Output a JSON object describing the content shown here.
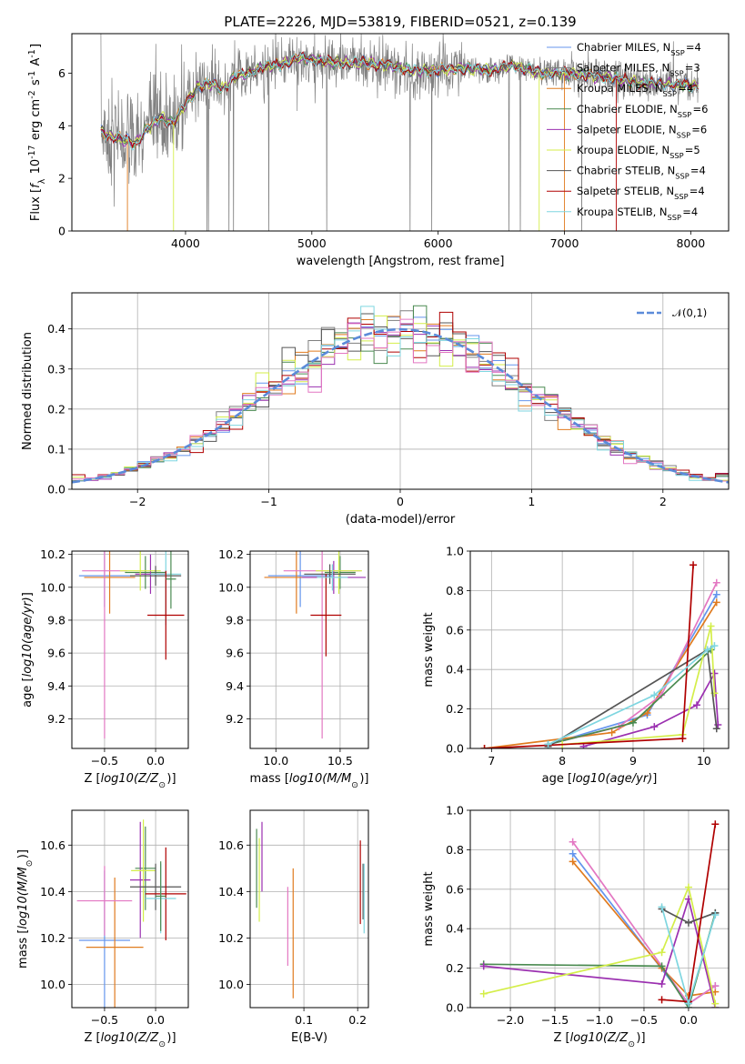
{
  "title": "PLATE=2226, MJD=53819, FIBERID=0521, z=0.139",
  "colors": {
    "Chabrier MILES": "#6495ed",
    "Salpeter MILES": "#7f7f7f",
    "Kroupa MILES": "#e07b1f",
    "Chabrier ELODIE": "#4a8a50",
    "Salpeter ELODIE": "#9b30b0",
    "Kroupa ELODIE": "#d4ee4a",
    "Chabrier STELIB": "#555555",
    "Salpeter STELIB": "#b00000",
    "Kroupa STELIB": "#7fd6e0",
    "Pink": "#e377c2",
    "Normal": "#5b8bd9"
  },
  "chart_data": [
    {
      "id": "spectrum",
      "type": "line",
      "xlabel": "wavelength [Angstrom, rest frame]",
      "ylabel": "Flux [$f_\\lambda 10^{-17}$ erg cm$^{-2}$ s$^{-1}$ A$^{-1}$]",
      "xlim": [
        3100,
        8300
      ],
      "ylim": [
        0,
        7.5
      ],
      "xticks": [
        4000,
        5000,
        6000,
        7000,
        8000
      ],
      "yticks": [
        0,
        2,
        4,
        6
      ],
      "legend": "top-right",
      "series": [
        {
          "name": "Chabrier MILES, N$_{SSP}$=4"
        },
        {
          "name": "Salpeter MILES, N$_{SSP}$=3"
        },
        {
          "name": "Kroupa MILES, N$_{SSP}$=4"
        },
        {
          "name": "Chabrier ELODIE, N$_{SSP}$=6"
        },
        {
          "name": "Salpeter ELODIE, N$_{SSP}$=6"
        },
        {
          "name": "Kroupa ELODIE, N$_{SSP}$=5"
        },
        {
          "name": "Chabrier STELIB, N$_{SSP}$=4"
        },
        {
          "name": "Salpeter STELIB, N$_{SSP}$=4"
        },
        {
          "name": "Kroupa STELIB, N$_{SSP}$=4"
        }
      ],
      "continuum": [
        [
          3330,
          3.8
        ],
        [
          3400,
          3.6
        ],
        [
          3500,
          3.5
        ],
        [
          3600,
          3.3
        ],
        [
          3700,
          3.9
        ],
        [
          3800,
          4.3
        ],
        [
          3900,
          4.1
        ],
        [
          4000,
          4.8
        ],
        [
          4100,
          5.5
        ],
        [
          4200,
          5.6
        ],
        [
          4300,
          5.4
        ],
        [
          4400,
          5.9
        ],
        [
          4500,
          6.0
        ],
        [
          4600,
          6.2
        ],
        [
          4700,
          6.3
        ],
        [
          4800,
          6.4
        ],
        [
          4900,
          6.6
        ],
        [
          5000,
          6.5
        ],
        [
          5200,
          6.4
        ],
        [
          5400,
          6.4
        ],
        [
          5600,
          6.3
        ],
        [
          5800,
          6.1
        ],
        [
          6000,
          6.1
        ],
        [
          6200,
          6.2
        ],
        [
          6400,
          6.1
        ],
        [
          6600,
          6.3
        ],
        [
          6800,
          6.0
        ],
        [
          7000,
          6.0
        ],
        [
          7200,
          5.9
        ],
        [
          7400,
          5.8
        ],
        [
          7600,
          5.6
        ],
        [
          7800,
          5.6
        ],
        [
          8050,
          5.5
        ]
      ]
    },
    {
      "id": "residuals",
      "type": "bar",
      "xlabel": "(data-model)/error",
      "ylabel": "Normed distribution",
      "xlim": [
        -2.5,
        2.5
      ],
      "ylim": [
        0,
        0.49
      ],
      "xticks": [
        -2,
        -1,
        0,
        1,
        2
      ],
      "yticks": [
        0.0,
        0.1,
        0.2,
        0.3,
        0.4
      ],
      "legend": "top-right",
      "legend_label": "$\\mathcal{N}(0,1)$",
      "bin_width": 0.1,
      "bin_start": -2.5,
      "gaussian": {
        "mean": 0,
        "sigma": 1
      }
    },
    {
      "id": "age-vs-Z",
      "type": "scatter",
      "xlabel": "Z [$\\log_{10}(Z/Z_\\odot)$]",
      "ylabel": "age  [$\\log_{10}(age/yr)$]",
      "xlim": [
        -0.82,
        0.32
      ],
      "ylim": [
        9.02,
        10.22
      ],
      "xticks": [
        -0.5,
        0.0
      ],
      "yticks": [
        9.2,
        9.4,
        9.6,
        9.8,
        10.0,
        10.2
      ],
      "points": [
        {
          "s": "Chabrier MILES",
          "x": -0.5,
          "y": 10.07,
          "xerr": 0.25,
          "yerr": 0.19
        },
        {
          "s": "Kroupa MILES",
          "x": -0.45,
          "y": 10.06,
          "xerr": 0.25,
          "yerr": 0.22
        },
        {
          "s": "Pink",
          "x": -0.5,
          "y": 10.1,
          "xerr": 0.22,
          "yerr": 1.02
        },
        {
          "s": "Chabrier ELODIE",
          "x": -0.1,
          "y": 10.09,
          "xerr": 0.2,
          "yerr": 0.1
        },
        {
          "s": "Salpeter ELODIE",
          "x": -0.05,
          "y": 10.08,
          "xerr": 0.15,
          "yerr": 0.12
        },
        {
          "s": "Kroupa ELODIE",
          "x": -0.15,
          "y": 10.1,
          "xerr": 0.2,
          "yerr": 0.12
        },
        {
          "s": "Chabrier STELIB",
          "x": 0.0,
          "y": 10.07,
          "xerr": 0.25,
          "yerr": 0.06
        },
        {
          "s": "Kroupa STELIB",
          "x": 0.1,
          "y": 10.08,
          "xerr": 0.15,
          "yerr": 0.31
        },
        {
          "s": "Salpeter STELIB",
          "x": 0.1,
          "y": 9.83,
          "xerr": 0.18,
          "yerr": 0.27
        },
        {
          "s": "Chabrier ELODIE",
          "x": 0.15,
          "y": 10.05,
          "xerr": 0.05,
          "yerr": 0.18
        }
      ]
    },
    {
      "id": "age-vs-mass",
      "type": "scatter",
      "xlabel": "mass [$\\log_{10}(M/M_\\odot)$]",
      "ylabel": "",
      "xlim": [
        9.8,
        10.72
      ],
      "ylim": [
        9.02,
        10.22
      ],
      "xticks": [
        10.0,
        10.5
      ],
      "yticks": [
        9.2,
        9.4,
        9.6,
        9.8,
        10.0,
        10.2
      ],
      "points": [
        {
          "s": "Chabrier MILES",
          "x": 10.19,
          "y": 10.07,
          "xerr": 0.25,
          "yerr": 0.19
        },
        {
          "s": "Kroupa MILES",
          "x": 10.16,
          "y": 10.06,
          "xerr": 0.25,
          "yerr": 0.22
        },
        {
          "s": "Pink",
          "x": 10.36,
          "y": 10.1,
          "xerr": 0.3,
          "yerr": 1.02
        },
        {
          "s": "Chabrier ELODIE",
          "x": 10.5,
          "y": 10.09,
          "xerr": 0.12,
          "yerr": 0.1
        },
        {
          "s": "Salpeter ELODIE",
          "x": 10.45,
          "y": 10.06,
          "xerr": 0.25,
          "yerr": 0.1
        },
        {
          "s": "Kroupa ELODIE",
          "x": 10.49,
          "y": 10.1,
          "xerr": 0.18,
          "yerr": 0.14
        },
        {
          "s": "Chabrier STELIB",
          "x": 10.42,
          "y": 10.08,
          "xerr": 0.2,
          "yerr": 0.06
        },
        {
          "s": "Salpeter STELIB",
          "x": 10.39,
          "y": 9.83,
          "xerr": 0.12,
          "yerr": 0.25
        },
        {
          "s": "Kroupa STELIB",
          "x": 10.44,
          "y": 10.06,
          "xerr": 0.12,
          "yerr": 0.08
        }
      ]
    },
    {
      "id": "weight-vs-age",
      "type": "line",
      "xlabel": "age  [$\\log_{10}(age/yr)$]",
      "ylabel": "mass weight",
      "xlim": [
        6.7,
        10.35
      ],
      "ylim": [
        0,
        1.0
      ],
      "xticks": [
        7,
        8,
        9,
        10
      ],
      "yticks": [
        0.0,
        0.2,
        0.4,
        0.6,
        0.8,
        1.0
      ],
      "series": [
        {
          "s": "Chabrier MILES",
          "pts": [
            [
              7.8,
              0.02
            ],
            [
              9.2,
              0.17
            ],
            [
              10.18,
              0.78
            ]
          ]
        },
        {
          "s": "Kroupa MILES",
          "pts": [
            [
              6.9,
              0.0
            ],
            [
              8.7,
              0.08
            ],
            [
              9.2,
              0.18
            ],
            [
              10.18,
              0.74
            ]
          ]
        },
        {
          "s": "Pink",
          "pts": [
            [
              7.8,
              0.02
            ],
            [
              8.8,
              0.11
            ],
            [
              9.4,
              0.27
            ],
            [
              10.18,
              0.84
            ]
          ]
        },
        {
          "s": "Chabrier ELODIE",
          "pts": [
            [
              7.8,
              0.02
            ],
            [
              9.0,
              0.13
            ],
            [
              10.1,
              0.5
            ]
          ]
        },
        {
          "s": "Salpeter ELODIE",
          "pts": [
            [
              8.3,
              0.01
            ],
            [
              9.3,
              0.11
            ],
            [
              9.9,
              0.22
            ],
            [
              10.15,
              0.38
            ],
            [
              10.2,
              0.12
            ]
          ]
        },
        {
          "s": "Kroupa ELODIE",
          "pts": [
            [
              8.0,
              0.02
            ],
            [
              9.7,
              0.07
            ],
            [
              10.1,
              0.62
            ],
            [
              10.15,
              0.28
            ]
          ]
        },
        {
          "s": "Chabrier STELIB",
          "pts": [
            [
              7.8,
              0.01
            ],
            [
              10.05,
              0.5
            ],
            [
              10.18,
              0.1
            ]
          ]
        },
        {
          "s": "Salpeter STELIB",
          "pts": [
            [
              6.9,
              0.0
            ],
            [
              9.7,
              0.05
            ],
            [
              9.85,
              0.93
            ]
          ]
        },
        {
          "s": "Kroupa STELIB",
          "pts": [
            [
              7.8,
              0.02
            ],
            [
              9.3,
              0.27
            ],
            [
              10.05,
              0.5
            ],
            [
              10.15,
              0.52
            ]
          ]
        }
      ]
    },
    {
      "id": "mass-vs-Z",
      "type": "scatter",
      "xlabel": "Z [$\\log_{10}(Z/Z_\\odot)$]",
      "ylabel": "mass [$\\log_{10}(M/M_\\odot)$]",
      "xlim": [
        -0.82,
        0.32
      ],
      "ylim": [
        9.9,
        10.75
      ],
      "xticks": [
        -0.5,
        0.0
      ],
      "yticks": [
        10.0,
        10.2,
        10.4,
        10.6
      ],
      "points": [
        {
          "s": "Chabrier MILES",
          "x": -0.5,
          "y": 10.19,
          "xerr": 0.25,
          "yerr": 0.3
        },
        {
          "s": "Kroupa MILES",
          "x": -0.4,
          "y": 10.16,
          "xerr": 0.28,
          "yerr": 0.3
        },
        {
          "s": "Pink",
          "x": -0.5,
          "y": 10.36,
          "xerr": 0.27,
          "yerr": 0.15
        },
        {
          "s": "Chabrier ELODIE",
          "x": -0.1,
          "y": 10.5,
          "xerr": 0.1,
          "yerr": 0.18
        },
        {
          "s": "Salpeter ELODIE",
          "x": -0.15,
          "y": 10.45,
          "xerr": 0.1,
          "yerr": 0.25
        },
        {
          "s": "Kroupa ELODIE",
          "x": -0.12,
          "y": 10.49,
          "xerr": 0.12,
          "yerr": 0.22
        },
        {
          "s": "Chabrier STELIB",
          "x": 0.0,
          "y": 10.42,
          "xerr": 0.25,
          "yerr": 0.1
        },
        {
          "s": "Salpeter STELIB",
          "x": 0.1,
          "y": 10.39,
          "xerr": 0.2,
          "yerr": 0.2
        },
        {
          "s": "Kroupa STELIB",
          "x": 0.05,
          "y": 10.37,
          "xerr": 0.15,
          "yerr": 0.15
        },
        {
          "s": "Chabrier ELODIE",
          "x": 0.05,
          "y": 10.38,
          "xerr": 0.05,
          "yerr": 0.15
        }
      ]
    },
    {
      "id": "mass-vs-ebv",
      "type": "scatter",
      "xlabel": "E(B-V)",
      "ylabel": "",
      "xlim": [
        0.0,
        0.22
      ],
      "ylim": [
        9.9,
        10.75
      ],
      "xticks": [
        0.1,
        0.2
      ],
      "yticks": [
        10.0,
        10.2,
        10.4,
        10.6
      ],
      "points": [
        {
          "s": "Chabrier ELODIE",
          "x": 0.012,
          "y": 10.5,
          "yerr": 0.17
        },
        {
          "s": "Salpeter ELODIE",
          "x": 0.022,
          "y": 10.55,
          "yerr": 0.15
        },
        {
          "s": "Kroupa ELODIE",
          "x": 0.017,
          "y": 10.45,
          "yerr": 0.18
        },
        {
          "s": "Pink",
          "x": 0.07,
          "y": 10.25,
          "yerr": 0.17
        },
        {
          "s": "Kroupa MILES",
          "x": 0.08,
          "y": 10.22,
          "yerr": 0.28
        },
        {
          "s": "Salpeter STELIB",
          "x": 0.205,
          "y": 10.44,
          "yerr": 0.18
        },
        {
          "s": "Chabrier STELIB",
          "x": 0.21,
          "y": 10.4,
          "yerr": 0.12
        },
        {
          "s": "Kroupa STELIB",
          "x": 0.212,
          "y": 10.37,
          "yerr": 0.15
        }
      ]
    },
    {
      "id": "weight-vs-Z",
      "type": "line",
      "xlabel": "Z [$\\log_{10}(Z/Z_\\odot)$]",
      "ylabel": "mass weight",
      "xlim": [
        -2.45,
        0.45
      ],
      "ylim": [
        0,
        1.0
      ],
      "xticks": [
        -2.0,
        -1.5,
        -1.0,
        -0.5,
        0.0
      ],
      "yticks": [
        0.0,
        0.2,
        0.4,
        0.6,
        0.8,
        1.0
      ],
      "series": [
        {
          "s": "Chabrier MILES",
          "pts": [
            [
              -1.3,
              0.78
            ],
            [
              0.0,
              0.02
            ],
            [
              0.3,
              0.11
            ]
          ]
        },
        {
          "s": "Kroupa MILES",
          "pts": [
            [
              -1.3,
              0.74
            ],
            [
              -0.3,
              0.2
            ],
            [
              0.0,
              0.06
            ],
            [
              0.3,
              0.08
            ]
          ]
        },
        {
          "s": "Pink",
          "pts": [
            [
              -1.3,
              0.84
            ],
            [
              0.0,
              0.02
            ],
            [
              0.3,
              0.11
            ]
          ]
        },
        {
          "s": "Chabrier ELODIE",
          "pts": [
            [
              -2.3,
              0.22
            ],
            [
              -0.3,
              0.21
            ],
            [
              0.0,
              0.0
            ],
            [
              0.3,
              0.48
            ]
          ]
        },
        {
          "s": "Salpeter ELODIE",
          "pts": [
            [
              -2.3,
              0.21
            ],
            [
              -0.3,
              0.12
            ],
            [
              0.0,
              0.55
            ],
            [
              0.3,
              0.0
            ]
          ]
        },
        {
          "s": "Kroupa ELODIE",
          "pts": [
            [
              -2.3,
              0.07
            ],
            [
              -0.3,
              0.28
            ],
            [
              0.0,
              0.61
            ],
            [
              0.3,
              0.02
            ]
          ]
        },
        {
          "s": "Chabrier STELIB",
          "pts": [
            [
              -0.3,
              0.5
            ],
            [
              0.0,
              0.43
            ],
            [
              0.3,
              0.48
            ]
          ]
        },
        {
          "s": "Salpeter STELIB",
          "pts": [
            [
              -0.3,
              0.04
            ],
            [
              0.0,
              0.03
            ],
            [
              0.3,
              0.93
            ]
          ]
        },
        {
          "s": "Kroupa STELIB",
          "pts": [
            [
              -0.3,
              0.51
            ],
            [
              0.0,
              0.02
            ],
            [
              0.3,
              0.47
            ]
          ]
        }
      ]
    }
  ]
}
